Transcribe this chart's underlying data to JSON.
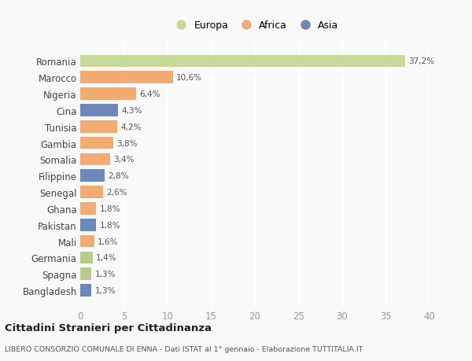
{
  "categories": [
    "Bangladesh",
    "Spagna",
    "Germania",
    "Mali",
    "Pakistan",
    "Ghana",
    "Senegal",
    "Filippine",
    "Somalia",
    "Gambia",
    "Tunisia",
    "Cina",
    "Nigeria",
    "Marocco",
    "Romania"
  ],
  "values": [
    1.3,
    1.3,
    1.4,
    1.6,
    1.8,
    1.8,
    2.6,
    2.8,
    3.4,
    3.8,
    4.2,
    4.3,
    6.4,
    10.6,
    37.2
  ],
  "labels": [
    "1,3%",
    "1,3%",
    "1,4%",
    "1,6%",
    "1,8%",
    "1,8%",
    "2,6%",
    "2,8%",
    "3,4%",
    "3,8%",
    "4,2%",
    "4,3%",
    "6,4%",
    "10,6%",
    "37,2%"
  ],
  "colors": [
    "#6b87bb",
    "#b8cc88",
    "#b8cc88",
    "#f2ac72",
    "#6b87bb",
    "#f2ac72",
    "#f2ac72",
    "#6b87bb",
    "#f2ac72",
    "#f2ac72",
    "#f2ac72",
    "#6b87bb",
    "#f2ac72",
    "#f2ac72",
    "#c8d99a"
  ],
  "legend_labels": [
    "Europa",
    "Africa",
    "Asia"
  ],
  "legend_colors": [
    "#c8d99a",
    "#f2ac72",
    "#6b87bb"
  ],
  "title": "Cittadini Stranieri per Cittadinanza",
  "subtitle": "LIBERO CONSORZIO COMUNALE DI ENNA - Dati ISTAT al 1° gennaio - Elaborazione TUTTITALIA.IT",
  "xlim": [
    0,
    40
  ],
  "xticks": [
    0,
    5,
    10,
    15,
    20,
    25,
    30,
    35,
    40
  ],
  "background_color": "#f9f9f9",
  "grid_color": "#ffffff",
  "bar_height": 0.75
}
